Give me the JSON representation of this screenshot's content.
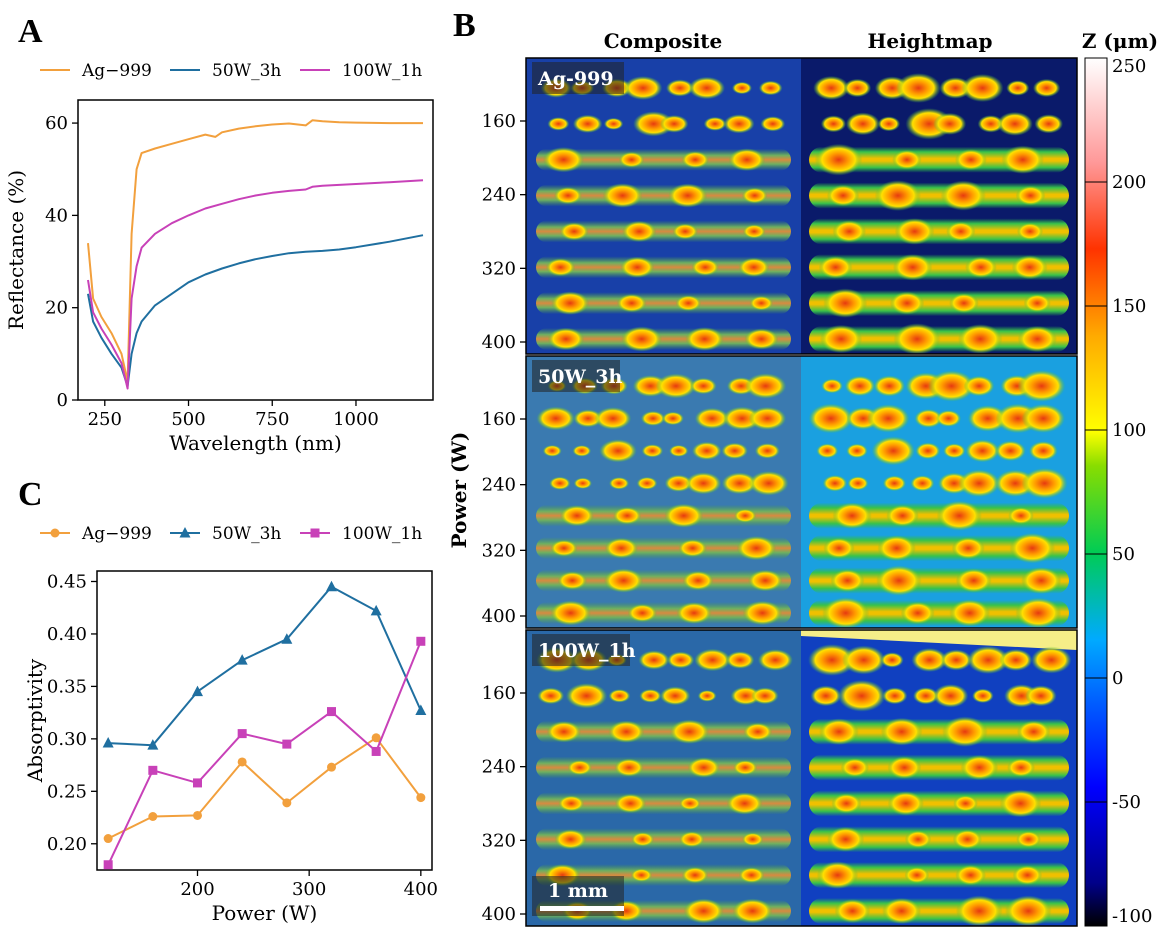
{
  "panel_labels": {
    "a": "A",
    "b": "B",
    "c": "C"
  },
  "panel_b": {
    "col_left": "Composite",
    "col_right": "Heightmap",
    "ylabel": "Power (W)",
    "yticks": [
      "160",
      "240",
      "320",
      "400"
    ],
    "subpanels": [
      "Ag-999",
      "50W_3h",
      "100W_1h"
    ],
    "scalebar": "1 mm",
    "colorbar": {
      "title": "Z (μm)",
      "ticks": [
        "250",
        "200",
        "150",
        "100",
        "50",
        "0",
        "-50",
        "-100"
      ],
      "range": [
        -100,
        250
      ],
      "colormap": "jet"
    }
  },
  "chart_data": [
    {
      "type": "line",
      "panel": "A",
      "xlabel": "Wavelength (nm)",
      "ylabel": "Reflectance (%)",
      "xlim": [
        170,
        1230
      ],
      "ylim": [
        0,
        65
      ],
      "xticks": [
        250,
        500,
        750,
        1000
      ],
      "yticks": [
        0,
        20,
        40,
        60
      ],
      "legend_position": "top",
      "series": [
        {
          "name": "Ag−999",
          "color": "#f2a03d",
          "x": [
            200,
            215,
            240,
            270,
            300,
            318,
            330,
            345,
            360,
            400,
            450,
            500,
            550,
            580,
            600,
            650,
            700,
            750,
            800,
            850,
            870,
            900,
            950,
            1000,
            1100,
            1200
          ],
          "y": [
            34,
            22,
            18,
            14.5,
            10,
            4,
            36,
            50,
            53.5,
            54.5,
            55.5,
            56.5,
            57.5,
            57,
            58,
            58.8,
            59.3,
            59.7,
            59.9,
            59.5,
            60.6,
            60.4,
            60.2,
            60.1,
            60,
            60
          ]
        },
        {
          "name": "50W_3h",
          "color": "#1f6fa0",
          "x": [
            200,
            215,
            240,
            270,
            300,
            318,
            330,
            345,
            360,
            400,
            450,
            500,
            550,
            600,
            650,
            700,
            750,
            800,
            850,
            900,
            950,
            1000,
            1100,
            1200
          ],
          "y": [
            23,
            17,
            13.5,
            10,
            7,
            3,
            10,
            14.5,
            17,
            20.5,
            23,
            25.5,
            27.2,
            28.5,
            29.6,
            30.5,
            31.2,
            31.8,
            32.1,
            32.3,
            32.6,
            33.1,
            34.3,
            35.7
          ]
        },
        {
          "name": "100W_1h",
          "color": "#c841b8",
          "x": [
            200,
            215,
            240,
            270,
            300,
            318,
            330,
            345,
            360,
            400,
            450,
            500,
            550,
            600,
            650,
            700,
            750,
            800,
            850,
            870,
            900,
            950,
            1000,
            1100,
            1200
          ],
          "y": [
            26,
            19,
            15.5,
            12,
            8,
            2.5,
            22,
            29,
            33,
            36,
            38.3,
            40,
            41.5,
            42.5,
            43.5,
            44.3,
            44.9,
            45.3,
            45.6,
            46.2,
            46.4,
            46.6,
            46.8,
            47.2,
            47.6
          ]
        }
      ]
    },
    {
      "type": "line",
      "panel": "C",
      "xlabel": "Power (W)",
      "ylabel": "Absorptivity",
      "xlim": [
        110,
        410
      ],
      "ylim": [
        0.175,
        0.46
      ],
      "xticks": [
        200,
        300,
        400
      ],
      "yticks": [
        0.2,
        0.25,
        0.3,
        0.35,
        0.4,
        0.45
      ],
      "ytick_labels": [
        "0.20",
        "0.25",
        "0.30",
        "0.35",
        "0.40",
        "0.45"
      ],
      "legend_position": "top",
      "x": [
        120,
        160,
        200,
        240,
        280,
        320,
        360,
        400
      ],
      "series": [
        {
          "name": "Ag−999",
          "color": "#f2a03d",
          "marker": "circle",
          "values": [
            0.205,
            0.226,
            0.227,
            0.278,
            0.239,
            0.273,
            0.301,
            0.244
          ]
        },
        {
          "name": "50W_3h",
          "color": "#1f6fa0",
          "marker": "triangle",
          "values": [
            0.296,
            0.294,
            0.345,
            0.375,
            0.395,
            0.445,
            0.422,
            0.327
          ]
        },
        {
          "name": "100W_1h",
          "color": "#c841b8",
          "marker": "square",
          "values": [
            0.18,
            0.27,
            0.258,
            0.305,
            0.295,
            0.326,
            0.288,
            0.393
          ]
        }
      ]
    }
  ]
}
